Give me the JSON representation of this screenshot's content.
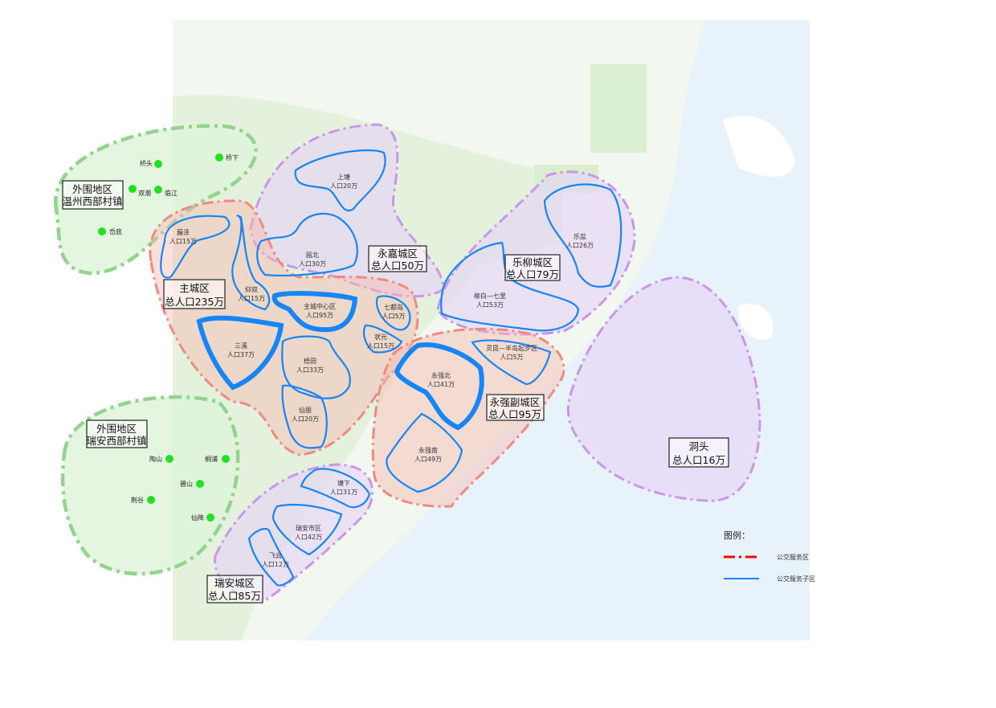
{
  "map": {
    "zones": [
      {
        "id": "main",
        "name": "主城区",
        "total": "总人口235万"
      },
      {
        "id": "yongjia",
        "name": "永嘉城区",
        "total": "总人口50万"
      },
      {
        "id": "leliu",
        "name": "乐柳城区",
        "total": "总人口79万"
      },
      {
        "id": "yongqiang",
        "name": "永强副城区",
        "total": "总人口95万"
      },
      {
        "id": "ruian",
        "name": "瑞安城区",
        "total": "总人口85万"
      },
      {
        "id": "dongtou",
        "name": "洞头",
        "total": "总人口16万"
      },
      {
        "id": "wz_west",
        "name": "外围地区",
        "total": "温州西部村镇"
      },
      {
        "id": "ra_west",
        "name": "外围地区",
        "total": "瑞安西部村镇"
      }
    ],
    "subzones": [
      {
        "name": "藤泽",
        "pop": "人口15万"
      },
      {
        "name": "仰双",
        "pop": "人口15万"
      },
      {
        "name": "主城中心区",
        "pop": "人口95万"
      },
      {
        "name": "三溪",
        "pop": "人口37万"
      },
      {
        "name": "梧田",
        "pop": "人口33万"
      },
      {
        "name": "仙丽",
        "pop": "人口20万"
      },
      {
        "name": "七都岛",
        "pop": "人口5万"
      },
      {
        "name": "状元",
        "pop": "人口15万"
      },
      {
        "name": "上塘",
        "pop": "人口20万"
      },
      {
        "name": "瓯北",
        "pop": "人口30万"
      },
      {
        "name": "乐盐",
        "pop": "人口26万"
      },
      {
        "name": "柳白—七里",
        "pop": "人口53万"
      },
      {
        "name": "灵昆—半岛起步区",
        "pop": "人口5万"
      },
      {
        "name": "永强北",
        "pop": "人口41万"
      },
      {
        "name": "永强南",
        "pop": "人口49万"
      },
      {
        "name": "塘下",
        "pop": "人口31万"
      },
      {
        "name": "瑞安市区",
        "pop": "人口42万"
      },
      {
        "name": "飞云",
        "pop": "人口12万"
      }
    ],
    "villages": [
      "桥头",
      "桥下",
      "双潮",
      "临江",
      "岙底",
      "陶山",
      "桐浦",
      "碧山",
      "荆谷",
      "仙降"
    ],
    "colors": {
      "service_zone": "#ff0000",
      "service_subzone": "#1685f5",
      "village": "#22e022"
    }
  },
  "legend": {
    "title": "图例：",
    "items": [
      {
        "label": "公交服务区",
        "style": "red-dash-dot"
      },
      {
        "label": "公交服务子区",
        "style": "blue-solid"
      }
    ]
  }
}
